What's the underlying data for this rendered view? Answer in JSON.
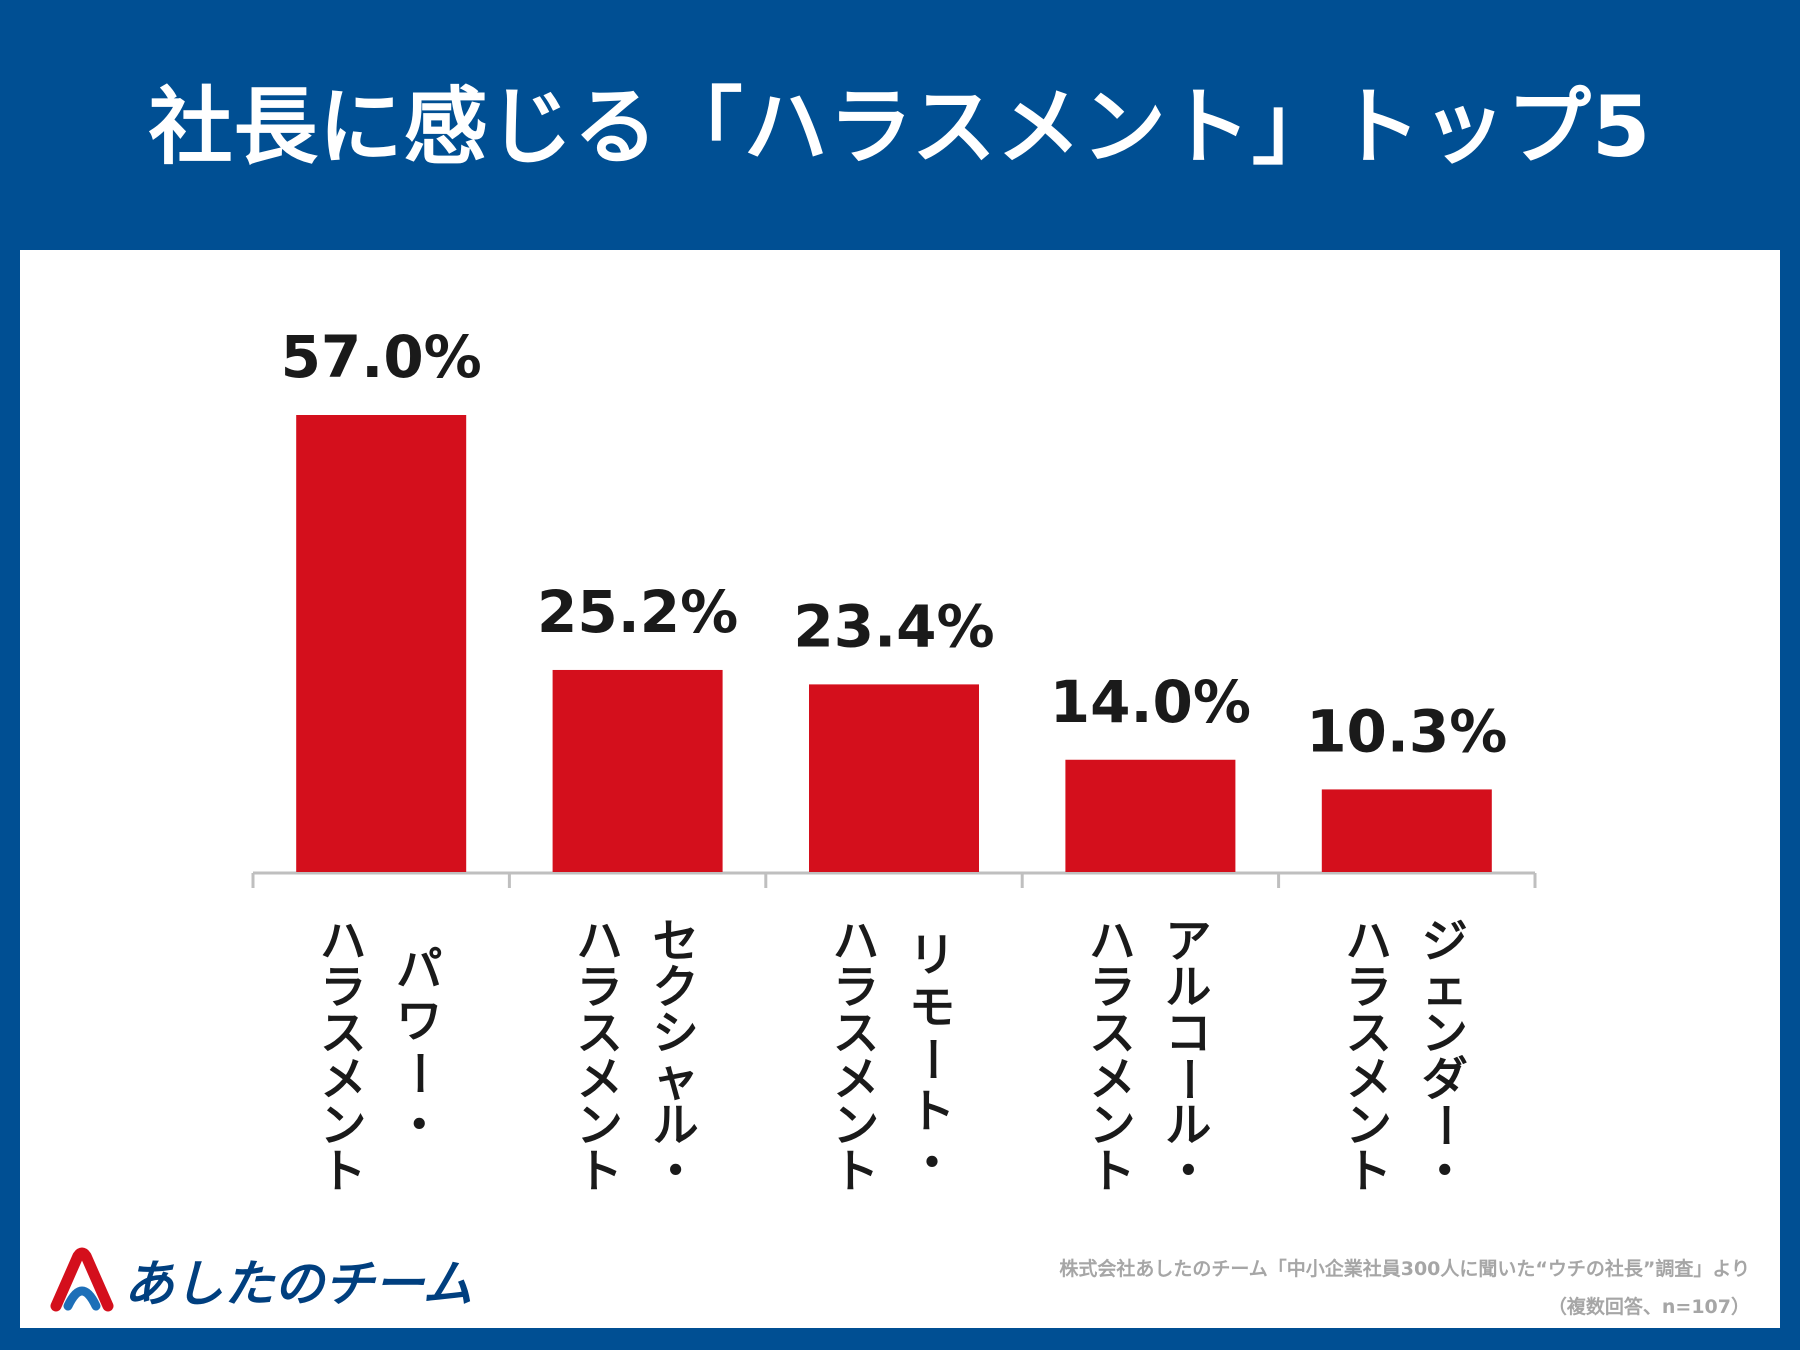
{
  "header": {
    "title": "社長に感じる「ハラスメント」トップ5"
  },
  "brand": {
    "logo_text": "あしたのチーム"
  },
  "source": {
    "line1": "株式会社あしたのチーム「中小企業社員300人に聞いた“ウチの社長”調査」より",
    "line2": "（複数回答、n=107）"
  },
  "colors": {
    "background": "#004f93",
    "bar": "#d40f1c",
    "panel": "#ffffff",
    "text": "#1a1a1a"
  },
  "chart_data": {
    "type": "bar",
    "title": "社長に感じる「ハラスメント」トップ5",
    "categories": [
      "パワー・ハラスメント",
      "セクシャル・ハラスメント",
      "リモート・ハラスメント",
      "アルコール・ハラスメント",
      "ジェンダー・ハラスメント"
    ],
    "category_lines": [
      [
        "パワー・",
        "ハラスメント"
      ],
      [
        "セクシャル・",
        "ハラスメント"
      ],
      [
        "リモート・",
        "ハラスメント"
      ],
      [
        "アルコール・",
        "ハラスメント"
      ],
      [
        "ジェンダー・",
        "ハラスメント"
      ]
    ],
    "values": [
      57.0,
      25.2,
      23.4,
      14.0,
      10.3
    ],
    "value_labels": [
      "57.0%",
      "25.2%",
      "23.4%",
      "14.0%",
      "10.3%"
    ],
    "unit": "%",
    "ylim": [
      0,
      57.0
    ],
    "xlabel": "",
    "ylabel": "",
    "grid": false,
    "legend": "none"
  }
}
